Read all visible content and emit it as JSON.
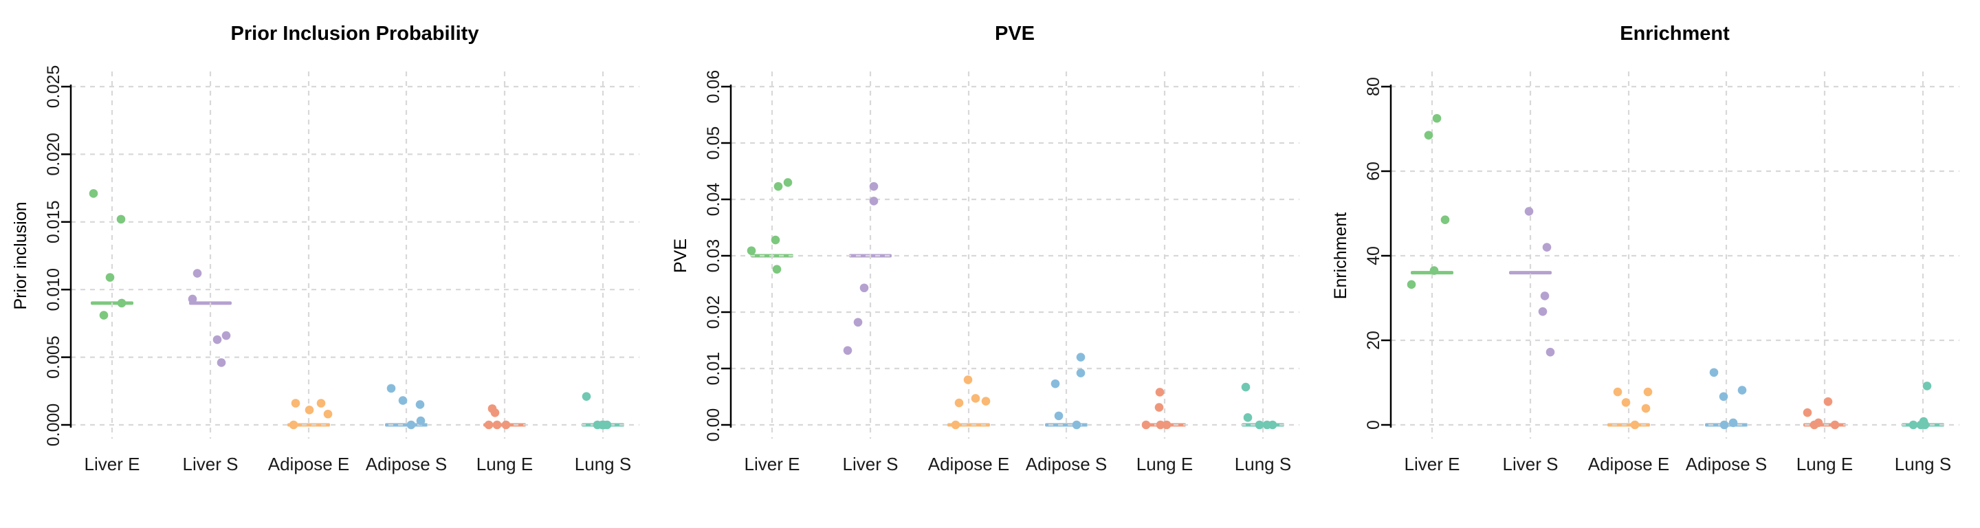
{
  "figure": {
    "background_color": "#ffffff",
    "gridline_color": "#d8d8d8",
    "axis_color": "#000000",
    "text_color": "#1a1a1a"
  },
  "groups": [
    {
      "label": "Liver E",
      "color": "#7CC87E"
    },
    {
      "label": "Liver S",
      "color": "#B5A1D0"
    },
    {
      "label": "Adipose E",
      "color": "#FAB873"
    },
    {
      "label": "Adipose S",
      "color": "#87BBDC"
    },
    {
      "label": "Lung E",
      "color": "#F0977B"
    },
    {
      "label": "Lung S",
      "color": "#6FC8B2"
    }
  ],
  "chart_data": [
    {
      "type": "scatter",
      "title": "Prior Inclusion Probability",
      "xlabel": "",
      "ylabel": "Prior inclusion",
      "ylim": [
        0,
        0.025
      ],
      "yticks": [
        0,
        0.005,
        0.01,
        0.015,
        0.02,
        0.025
      ],
      "ytick_labels": [
        "0.000",
        "0.005",
        "0.010",
        "0.015",
        "0.020",
        "0.025"
      ],
      "grid": true,
      "legend": "none",
      "categories": [
        "Liver E",
        "Liver S",
        "Adipose E",
        "Adipose S",
        "Lung E",
        "Lung S"
      ],
      "series": [
        {
          "name": "Liver E",
          "median": 0.009,
          "points": [
            {
              "v": 0.0171,
              "dx": -27
            },
            {
              "v": 0.0152,
              "dx": 13
            },
            {
              "v": 0.0109,
              "dx": -3
            },
            {
              "v": 0.009,
              "dx": 14
            },
            {
              "v": 0.0081,
              "dx": -12
            }
          ]
        },
        {
          "name": "Liver S",
          "median": 0.009,
          "points": [
            {
              "v": 0.0112,
              "dx": -19
            },
            {
              "v": 0.0093,
              "dx": -26
            },
            {
              "v": 0.0066,
              "dx": 23
            },
            {
              "v": 0.0063,
              "dx": 10
            },
            {
              "v": 0.0046,
              "dx": 16
            }
          ]
        },
        {
          "name": "Adipose E",
          "median": 0.0,
          "points": [
            {
              "v": 0.0016,
              "dx": -19
            },
            {
              "v": 0.0016,
              "dx": 18
            },
            {
              "v": 0.0011,
              "dx": 1
            },
            {
              "v": 0.0008,
              "dx": 28
            },
            {
              "v": 0.0,
              "dx": -22
            }
          ]
        },
        {
          "name": "Adipose S",
          "median": 0.0,
          "points": [
            {
              "v": 0.0027,
              "dx": -22
            },
            {
              "v": 0.0018,
              "dx": -5
            },
            {
              "v": 0.0015,
              "dx": 20
            },
            {
              "v": 0.0003,
              "dx": 21
            },
            {
              "v": 0.0,
              "dx": 7
            }
          ]
        },
        {
          "name": "Lung E",
          "median": 0.0,
          "points": [
            {
              "v": 0.0012,
              "dx": -18
            },
            {
              "v": 0.0009,
              "dx": -14
            },
            {
              "v": 0.0,
              "dx": -23
            },
            {
              "v": 0.0,
              "dx": -11
            },
            {
              "v": 0.0,
              "dx": 2
            }
          ]
        },
        {
          "name": "Lung S",
          "median": 0.0,
          "points": [
            {
              "v": 0.0021,
              "dx": -24
            },
            {
              "v": 0.0,
              "dx": -8
            },
            {
              "v": 0.0,
              "dx": -1
            },
            {
              "v": 0.0,
              "dx": 6
            },
            {
              "v": 0.0,
              "dx": 1
            }
          ]
        }
      ]
    },
    {
      "type": "scatter",
      "title": "PVE",
      "xlabel": "",
      "ylabel": "PVE",
      "ylim": [
        0,
        0.06
      ],
      "yticks": [
        0,
        0.01,
        0.02,
        0.03,
        0.04,
        0.05,
        0.06
      ],
      "ytick_labels": [
        "0.00",
        "0.01",
        "0.02",
        "0.03",
        "0.04",
        "0.05",
        "0.06"
      ],
      "grid": true,
      "legend": "none",
      "categories": [
        "Liver E",
        "Liver S",
        "Adipose E",
        "Adipose S",
        "Lung E",
        "Lung S"
      ],
      "series": [
        {
          "name": "Liver E",
          "median": 0.03,
          "points": [
            {
              "v": 0.043,
              "dx": 23
            },
            {
              "v": 0.0423,
              "dx": 9
            },
            {
              "v": 0.0328,
              "dx": 5
            },
            {
              "v": 0.0309,
              "dx": -30
            },
            {
              "v": 0.0276,
              "dx": 7
            }
          ]
        },
        {
          "name": "Liver S",
          "median": 0.03,
          "points": [
            {
              "v": 0.0423,
              "dx": 5
            },
            {
              "v": 0.0397,
              "dx": 5
            },
            {
              "v": 0.0243,
              "dx": -9
            },
            {
              "v": 0.0182,
              "dx": -18
            },
            {
              "v": 0.0132,
              "dx": -33
            }
          ]
        },
        {
          "name": "Adipose E",
          "median": 0.0,
          "points": [
            {
              "v": 0.008,
              "dx": -1
            },
            {
              "v": 0.0047,
              "dx": 10
            },
            {
              "v": 0.0042,
              "dx": 25
            },
            {
              "v": 0.0039,
              "dx": -14
            },
            {
              "v": 0.0,
              "dx": -19
            }
          ]
        },
        {
          "name": "Adipose S",
          "median": 0.0,
          "points": [
            {
              "v": 0.012,
              "dx": 21
            },
            {
              "v": 0.0092,
              "dx": 21
            },
            {
              "v": 0.0073,
              "dx": -16
            },
            {
              "v": 0.0016,
              "dx": -11
            },
            {
              "v": 0.0,
              "dx": 15
            }
          ]
        },
        {
          "name": "Lung E",
          "median": 0.0,
          "points": [
            {
              "v": 0.0058,
              "dx": -7
            },
            {
              "v": 0.0031,
              "dx": -8
            },
            {
              "v": 0.0,
              "dx": -27
            },
            {
              "v": 0.0,
              "dx": -6
            },
            {
              "v": 0.0,
              "dx": 3
            }
          ]
        },
        {
          "name": "Lung S",
          "median": 0.0,
          "points": [
            {
              "v": 0.0067,
              "dx": -25
            },
            {
              "v": 0.0013,
              "dx": -22
            },
            {
              "v": 0.0,
              "dx": -5
            },
            {
              "v": 0.0,
              "dx": 6
            },
            {
              "v": 0.0,
              "dx": 14
            }
          ]
        }
      ]
    },
    {
      "type": "scatter",
      "title": "Enrichment",
      "xlabel": "",
      "ylabel": "Enrichment",
      "ylim": [
        0,
        80
      ],
      "yticks": [
        0,
        20,
        40,
        60,
        80
      ],
      "ytick_labels": [
        "0",
        "20",
        "40",
        "60",
        "80"
      ],
      "grid": true,
      "legend": "none",
      "categories": [
        "Liver E",
        "Liver S",
        "Adipose E",
        "Adipose S",
        "Lung E",
        "Lung S"
      ],
      "series": [
        {
          "name": "Liver E",
          "median": 36,
          "points": [
            {
              "v": 72.5,
              "dx": 7
            },
            {
              "v": 68.5,
              "dx": -5
            },
            {
              "v": 48.5,
              "dx": 19
            },
            {
              "v": 36.5,
              "dx": 3
            },
            {
              "v": 33.2,
              "dx": -30
            }
          ]
        },
        {
          "name": "Liver S",
          "median": 36,
          "points": [
            {
              "v": 50.5,
              "dx": -2
            },
            {
              "v": 42.0,
              "dx": 24
            },
            {
              "v": 30.5,
              "dx": 21
            },
            {
              "v": 26.8,
              "dx": 18
            },
            {
              "v": 17.2,
              "dx": 29
            }
          ]
        },
        {
          "name": "Adipose E",
          "median": 0,
          "points": [
            {
              "v": 7.8,
              "dx": -16
            },
            {
              "v": 7.8,
              "dx": 28
            },
            {
              "v": 5.3,
              "dx": -4
            },
            {
              "v": 3.9,
              "dx": 25
            },
            {
              "v": 0.0,
              "dx": 9
            }
          ]
        },
        {
          "name": "Adipose S",
          "median": 0,
          "points": [
            {
              "v": 12.4,
              "dx": -18
            },
            {
              "v": 8.2,
              "dx": 23
            },
            {
              "v": 6.7,
              "dx": -4
            },
            {
              "v": 0.5,
              "dx": 10
            },
            {
              "v": 0.0,
              "dx": -3
            }
          ]
        },
        {
          "name": "Lung E",
          "median": 0,
          "points": [
            {
              "v": 5.5,
              "dx": 5
            },
            {
              "v": 2.9,
              "dx": -25
            },
            {
              "v": 0.5,
              "dx": -9
            },
            {
              "v": 0.0,
              "dx": -15
            },
            {
              "v": 0.0,
              "dx": 15
            }
          ]
        },
        {
          "name": "Lung S",
          "median": 0,
          "points": [
            {
              "v": 9.2,
              "dx": 6
            },
            {
              "v": 0.8,
              "dx": 1
            },
            {
              "v": 0.0,
              "dx": -14
            },
            {
              "v": 0.0,
              "dx": 3
            },
            {
              "v": 0.0,
              "dx": -3
            }
          ]
        }
      ]
    }
  ]
}
